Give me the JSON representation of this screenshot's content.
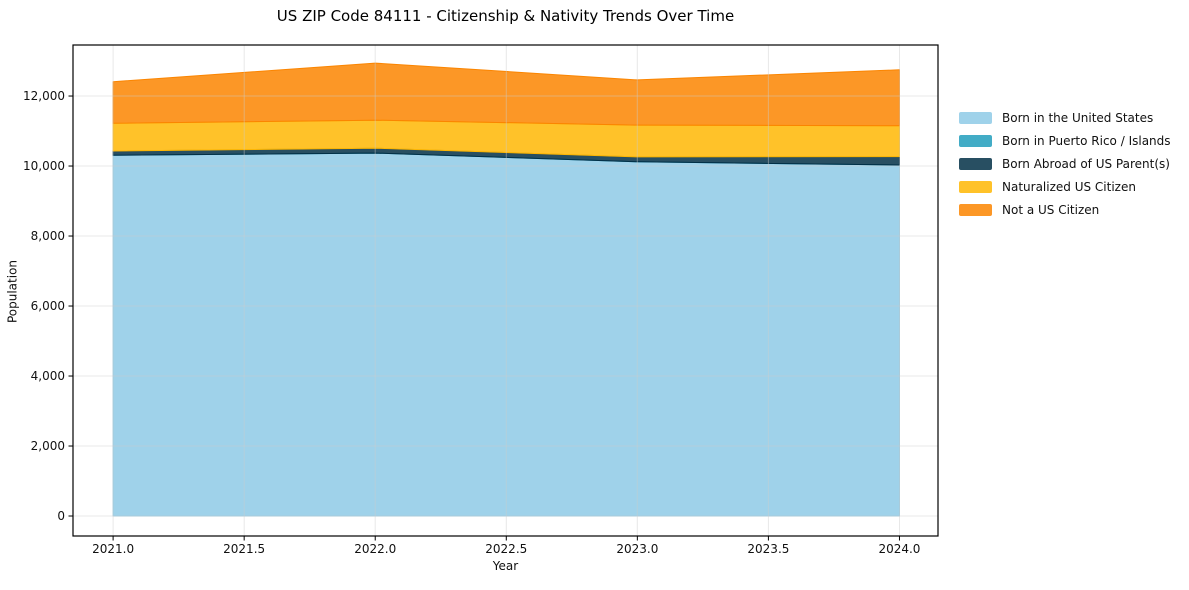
{
  "header": {
    "title": "US ZIP Code 84111 - Citizenship & Nativity Trends Over Time"
  },
  "chart_data": {
    "type": "area",
    "stacked": true,
    "title": "US ZIP Code 84111 - Citizenship & Nativity Trends Over Time",
    "xlabel": "Year",
    "ylabel": "Population",
    "x": [
      2021,
      2022,
      2023,
      2024
    ],
    "series": [
      {
        "name": "Born in the United States",
        "color": "#8ecae6",
        "values": [
          10310,
          10370,
          10120,
          10030
        ]
      },
      {
        "name": "Born in Puerto Rico / Islands",
        "color": "#219ebc",
        "values": [
          0,
          0,
          0,
          0
        ]
      },
      {
        "name": "Born Abroad of US Parent(s)",
        "color": "#023047",
        "values": [
          120,
          140,
          140,
          240
        ]
      },
      {
        "name": "Naturalized US Citizen",
        "color": "#ffb703",
        "values": [
          790,
          800,
          910,
          880
        ]
      },
      {
        "name": "Not a US Citizen",
        "color": "#fb8500",
        "values": [
          1190,
          1630,
          1290,
          1600
        ]
      }
    ],
    "totals": [
      12410,
      12940,
      12460,
      12750
    ],
    "fill_alpha": 0.85,
    "x_ticks": [
      2021.0,
      2021.5,
      2022.0,
      2022.5,
      2023.0,
      2023.5,
      2024.0
    ],
    "x_tick_labels": [
      "2021.0",
      "2021.5",
      "2022.0",
      "2022.5",
      "2023.0",
      "2023.5",
      "2024.0"
    ],
    "y_ticks": [
      0,
      2000,
      4000,
      6000,
      8000,
      10000,
      12000
    ],
    "y_tick_labels": [
      "0",
      "2,000",
      "4,000",
      "6,000",
      "8,000",
      "10,000",
      "12,000"
    ],
    "xlim": [
      2020.847,
      2024.147
    ],
    "ylim": [
      -571,
      13458
    ],
    "grid": true,
    "grid_color": "#cccccc",
    "axes_color": "#000000",
    "legend_position": "outside-right"
  }
}
